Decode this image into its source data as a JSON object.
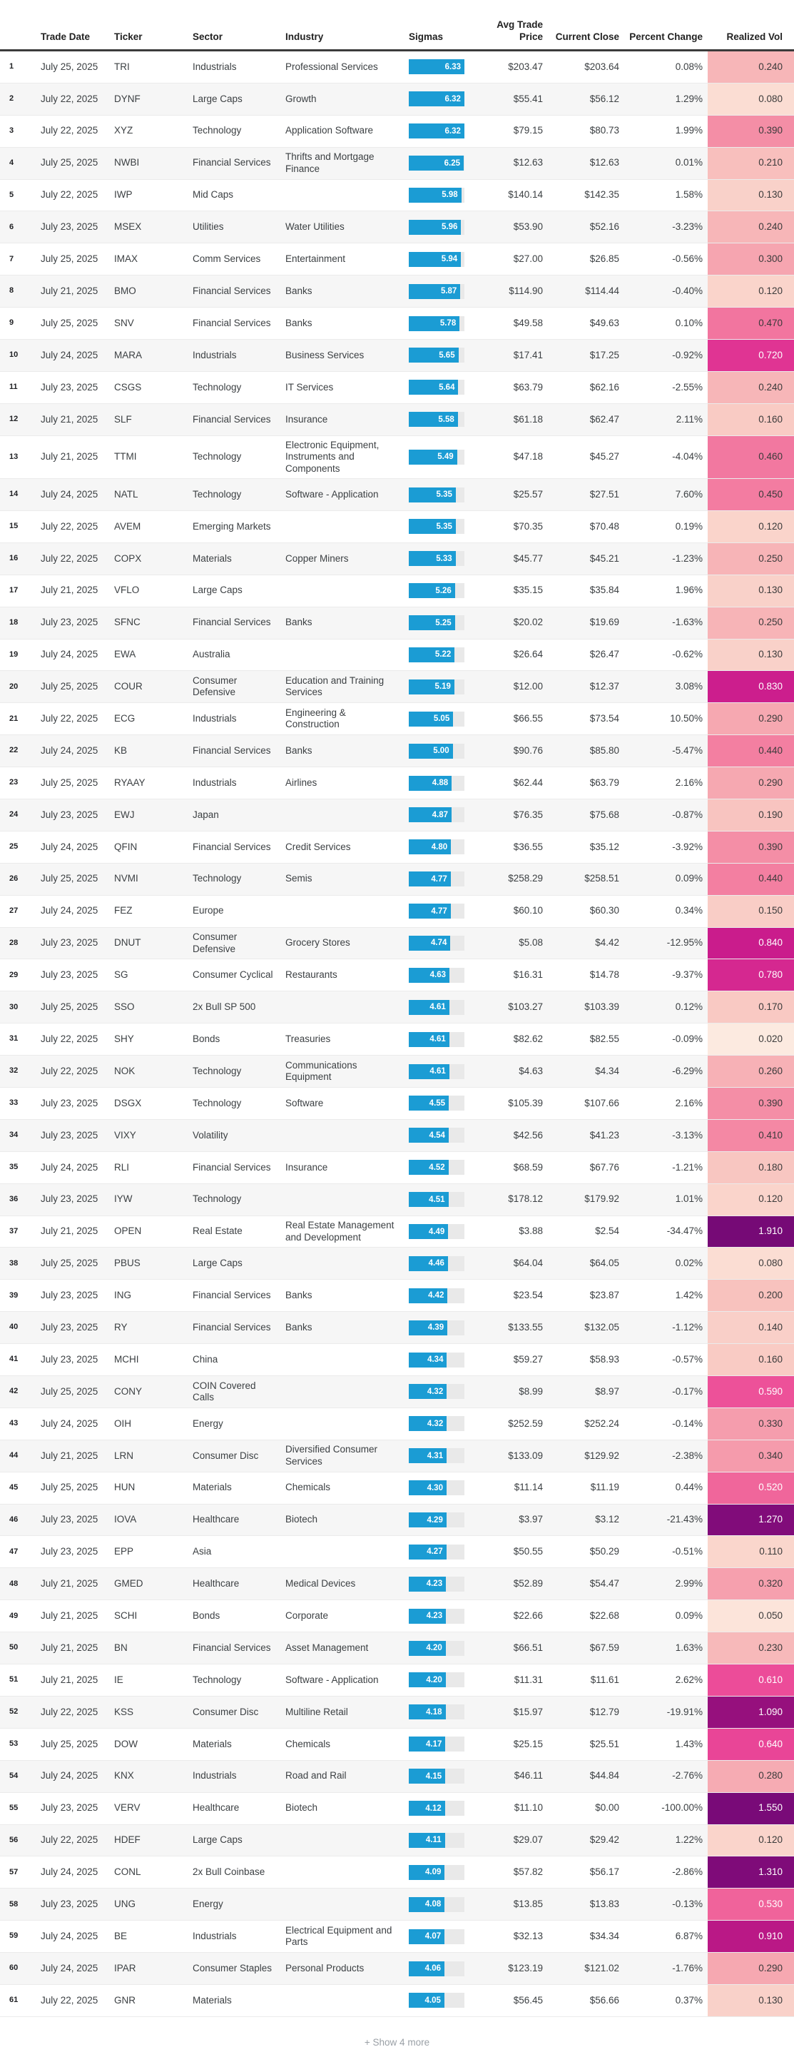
{
  "header": {
    "columns": [
      {
        "label": ""
      },
      {
        "label": "Trade Date"
      },
      {
        "label": "Ticker"
      },
      {
        "label": "Sector"
      },
      {
        "label": "Industry"
      },
      {
        "label": "Sigmas"
      },
      {
        "label": "Avg Trade Price"
      },
      {
        "label": "Current Close"
      },
      {
        "label": "Percent Change"
      },
      {
        "label": "Realized Vol"
      }
    ]
  },
  "sigma_bar": {
    "max": 6.33,
    "fill_color": "#1b9cd4",
    "track_color": "#e9e9e9"
  },
  "vol_colormap": {
    "white_text_min": 0.5,
    "stops": [
      [
        0.0,
        "#FDEFE5"
      ],
      [
        0.1,
        "#FAD8CE"
      ],
      [
        0.2,
        "#F8C2BE"
      ],
      [
        0.3,
        "#F6A5B0"
      ],
      [
        0.4,
        "#F48BA5"
      ],
      [
        0.5,
        "#F16C9C"
      ],
      [
        0.6,
        "#ED4E99"
      ],
      [
        0.72,
        "#E03493"
      ],
      [
        0.84,
        "#CA1C8C"
      ],
      [
        1.0,
        "#A5127F"
      ],
      [
        1.2,
        "#840D7B"
      ],
      [
        1.4,
        "#7A0A78"
      ],
      [
        2.0,
        "#750A76"
      ]
    ]
  },
  "footer": {
    "show_more_label": "+ Show 4 more"
  },
  "rows": [
    {
      "n": "1",
      "date": "July 25, 2025",
      "ticker": "TRI",
      "sector": "Industrials",
      "industry": "Professional Services",
      "sigma": "6.33",
      "avg": "$203.47",
      "close": "$203.64",
      "pct": "0.08%",
      "vol": "0.240"
    },
    {
      "n": "2",
      "date": "July 22, 2025",
      "ticker": "DYNF",
      "sector": "Large Caps",
      "industry": "Growth",
      "sigma": "6.32",
      "avg": "$55.41",
      "close": "$56.12",
      "pct": "1.29%",
      "vol": "0.080"
    },
    {
      "n": "3",
      "date": "July 22, 2025",
      "ticker": "XYZ",
      "sector": "Technology",
      "industry": "Application Software",
      "sigma": "6.32",
      "avg": "$79.15",
      "close": "$80.73",
      "pct": "1.99%",
      "vol": "0.390"
    },
    {
      "n": "4",
      "date": "July 25, 2025",
      "ticker": "NWBI",
      "sector": "Financial Services",
      "industry": "Thrifts and Mortgage Finance",
      "sigma": "6.25",
      "avg": "$12.63",
      "close": "$12.63",
      "pct": "0.01%",
      "vol": "0.210"
    },
    {
      "n": "5",
      "date": "July 22, 2025",
      "ticker": "IWP",
      "sector": "Mid Caps",
      "industry": "",
      "sigma": "5.98",
      "avg": "$140.14",
      "close": "$142.35",
      "pct": "1.58%",
      "vol": "0.130"
    },
    {
      "n": "6",
      "date": "July 23, 2025",
      "ticker": "MSEX",
      "sector": "Utilities",
      "industry": "Water Utilities",
      "sigma": "5.96",
      "avg": "$53.90",
      "close": "$52.16",
      "pct": "-3.23%",
      "vol": "0.240"
    },
    {
      "n": "7",
      "date": "July 25, 2025",
      "ticker": "IMAX",
      "sector": "Comm Services",
      "industry": "Entertainment",
      "sigma": "5.94",
      "avg": "$27.00",
      "close": "$26.85",
      "pct": "-0.56%",
      "vol": "0.300"
    },
    {
      "n": "8",
      "date": "July 21, 2025",
      "ticker": "BMO",
      "sector": "Financial Services",
      "industry": "Banks",
      "sigma": "5.87",
      "avg": "$114.90",
      "close": "$114.44",
      "pct": "-0.40%",
      "vol": "0.120"
    },
    {
      "n": "9",
      "date": "July 25, 2025",
      "ticker": "SNV",
      "sector": "Financial Services",
      "industry": "Banks",
      "sigma": "5.78",
      "avg": "$49.58",
      "close": "$49.63",
      "pct": "0.10%",
      "vol": "0.470"
    },
    {
      "n": "10",
      "date": "July 24, 2025",
      "ticker": "MARA",
      "sector": "Industrials",
      "industry": "Business Services",
      "sigma": "5.65",
      "avg": "$17.41",
      "close": "$17.25",
      "pct": "-0.92%",
      "vol": "0.720"
    },
    {
      "n": "11",
      "date": "July 23, 2025",
      "ticker": "CSGS",
      "sector": "Technology",
      "industry": "IT Services",
      "sigma": "5.64",
      "avg": "$63.79",
      "close": "$62.16",
      "pct": "-2.55%",
      "vol": "0.240"
    },
    {
      "n": "12",
      "date": "July 21, 2025",
      "ticker": "SLF",
      "sector": "Financial Services",
      "industry": "Insurance",
      "sigma": "5.58",
      "avg": "$61.18",
      "close": "$62.47",
      "pct": "2.11%",
      "vol": "0.160"
    },
    {
      "n": "13",
      "date": "July 21, 2025",
      "ticker": "TTMI",
      "sector": "Technology",
      "industry": "Electronic Equipment, Instruments and Components",
      "sigma": "5.49",
      "avg": "$47.18",
      "close": "$45.27",
      "pct": "-4.04%",
      "vol": "0.460"
    },
    {
      "n": "14",
      "date": "July 24, 2025",
      "ticker": "NATL",
      "sector": "Technology",
      "industry": "Software - Application",
      "sigma": "5.35",
      "avg": "$25.57",
      "close": "$27.51",
      "pct": "7.60%",
      "vol": "0.450"
    },
    {
      "n": "15",
      "date": "July 22, 2025",
      "ticker": "AVEM",
      "sector": "Emerging Markets",
      "industry": "",
      "sigma": "5.35",
      "avg": "$70.35",
      "close": "$70.48",
      "pct": "0.19%",
      "vol": "0.120"
    },
    {
      "n": "16",
      "date": "July 22, 2025",
      "ticker": "COPX",
      "sector": "Materials",
      "industry": "Copper Miners",
      "sigma": "5.33",
      "avg": "$45.77",
      "close": "$45.21",
      "pct": "-1.23%",
      "vol": "0.250"
    },
    {
      "n": "17",
      "date": "July 21, 2025",
      "ticker": "VFLO",
      "sector": "Large Caps",
      "industry": "",
      "sigma": "5.26",
      "avg": "$35.15",
      "close": "$35.84",
      "pct": "1.96%",
      "vol": "0.130"
    },
    {
      "n": "18",
      "date": "July 23, 2025",
      "ticker": "SFNC",
      "sector": "Financial Services",
      "industry": "Banks",
      "sigma": "5.25",
      "avg": "$20.02",
      "close": "$19.69",
      "pct": "-1.63%",
      "vol": "0.250"
    },
    {
      "n": "19",
      "date": "July 24, 2025",
      "ticker": "EWA",
      "sector": "Australia",
      "industry": "",
      "sigma": "5.22",
      "avg": "$26.64",
      "close": "$26.47",
      "pct": "-0.62%",
      "vol": "0.130"
    },
    {
      "n": "20",
      "date": "July 25, 2025",
      "ticker": "COUR",
      "sector": "Consumer Defensive",
      "industry": "Education and Training Services",
      "sigma": "5.19",
      "avg": "$12.00",
      "close": "$12.37",
      "pct": "3.08%",
      "vol": "0.830"
    },
    {
      "n": "21",
      "date": "July 22, 2025",
      "ticker": "ECG",
      "sector": "Industrials",
      "industry": "Engineering & Construction",
      "sigma": "5.05",
      "avg": "$66.55",
      "close": "$73.54",
      "pct": "10.50%",
      "vol": "0.290"
    },
    {
      "n": "22",
      "date": "July 24, 2025",
      "ticker": "KB",
      "sector": "Financial Services",
      "industry": "Banks",
      "sigma": "5.00",
      "avg": "$90.76",
      "close": "$85.80",
      "pct": "-5.47%",
      "vol": "0.440"
    },
    {
      "n": "23",
      "date": "July 25, 2025",
      "ticker": "RYAAY",
      "sector": "Industrials",
      "industry": "Airlines",
      "sigma": "4.88",
      "avg": "$62.44",
      "close": "$63.79",
      "pct": "2.16%",
      "vol": "0.290"
    },
    {
      "n": "24",
      "date": "July 23, 2025",
      "ticker": "EWJ",
      "sector": "Japan",
      "industry": "",
      "sigma": "4.87",
      "avg": "$76.35",
      "close": "$75.68",
      "pct": "-0.87%",
      "vol": "0.190"
    },
    {
      "n": "25",
      "date": "July 24, 2025",
      "ticker": "QFIN",
      "sector": "Financial Services",
      "industry": "Credit Services",
      "sigma": "4.80",
      "avg": "$36.55",
      "close": "$35.12",
      "pct": "-3.92%",
      "vol": "0.390"
    },
    {
      "n": "26",
      "date": "July 25, 2025",
      "ticker": "NVMI",
      "sector": "Technology",
      "industry": "Semis",
      "sigma": "4.77",
      "avg": "$258.29",
      "close": "$258.51",
      "pct": "0.09%",
      "vol": "0.440"
    },
    {
      "n": "27",
      "date": "July 24, 2025",
      "ticker": "FEZ",
      "sector": "Europe",
      "industry": "",
      "sigma": "4.77",
      "avg": "$60.10",
      "close": "$60.30",
      "pct": "0.34%",
      "vol": "0.150"
    },
    {
      "n": "28",
      "date": "July 23, 2025",
      "ticker": "DNUT",
      "sector": "Consumer Defensive",
      "industry": "Grocery Stores",
      "sigma": "4.74",
      "avg": "$5.08",
      "close": "$4.42",
      "pct": "-12.95%",
      "vol": "0.840"
    },
    {
      "n": "29",
      "date": "July 23, 2025",
      "ticker": "SG",
      "sector": "Consumer Cyclical",
      "industry": "Restaurants",
      "sigma": "4.63",
      "avg": "$16.31",
      "close": "$14.78",
      "pct": "-9.37%",
      "vol": "0.780"
    },
    {
      "n": "30",
      "date": "July 25, 2025",
      "ticker": "SSO",
      "sector": "2x Bull SP 500",
      "industry": "",
      "sigma": "4.61",
      "avg": "$103.27",
      "close": "$103.39",
      "pct": "0.12%",
      "vol": "0.170"
    },
    {
      "n": "31",
      "date": "July 22, 2025",
      "ticker": "SHY",
      "sector": "Bonds",
      "industry": "Treasuries",
      "sigma": "4.61",
      "avg": "$82.62",
      "close": "$82.55",
      "pct": "-0.09%",
      "vol": "0.020"
    },
    {
      "n": "32",
      "date": "July 22, 2025",
      "ticker": "NOK",
      "sector": "Technology",
      "industry": "Communications Equipment",
      "sigma": "4.61",
      "avg": "$4.63",
      "close": "$4.34",
      "pct": "-6.29%",
      "vol": "0.260"
    },
    {
      "n": "33",
      "date": "July 23, 2025",
      "ticker": "DSGX",
      "sector": "Technology",
      "industry": "Software",
      "sigma": "4.55",
      "avg": "$105.39",
      "close": "$107.66",
      "pct": "2.16%",
      "vol": "0.390"
    },
    {
      "n": "34",
      "date": "July 23, 2025",
      "ticker": "VIXY",
      "sector": "Volatility",
      "industry": "",
      "sigma": "4.54",
      "avg": "$42.56",
      "close": "$41.23",
      "pct": "-3.13%",
      "vol": "0.410"
    },
    {
      "n": "35",
      "date": "July 24, 2025",
      "ticker": "RLI",
      "sector": "Financial Services",
      "industry": "Insurance",
      "sigma": "4.52",
      "avg": "$68.59",
      "close": "$67.76",
      "pct": "-1.21%",
      "vol": "0.180"
    },
    {
      "n": "36",
      "date": "July 23, 2025",
      "ticker": "IYW",
      "sector": "Technology",
      "industry": "",
      "sigma": "4.51",
      "avg": "$178.12",
      "close": "$179.92",
      "pct": "1.01%",
      "vol": "0.120"
    },
    {
      "n": "37",
      "date": "July 21, 2025",
      "ticker": "OPEN",
      "sector": "Real Estate",
      "industry": "Real Estate Management and Development",
      "sigma": "4.49",
      "avg": "$3.88",
      "close": "$2.54",
      "pct": "-34.47%",
      "vol": "1.910"
    },
    {
      "n": "38",
      "date": "July 25, 2025",
      "ticker": "PBUS",
      "sector": "Large Caps",
      "industry": "",
      "sigma": "4.46",
      "avg": "$64.04",
      "close": "$64.05",
      "pct": "0.02%",
      "vol": "0.080"
    },
    {
      "n": "39",
      "date": "July 23, 2025",
      "ticker": "ING",
      "sector": "Financial Services",
      "industry": "Banks",
      "sigma": "4.42",
      "avg": "$23.54",
      "close": "$23.87",
      "pct": "1.42%",
      "vol": "0.200"
    },
    {
      "n": "40",
      "date": "July 23, 2025",
      "ticker": "RY",
      "sector": "Financial Services",
      "industry": "Banks",
      "sigma": "4.39",
      "avg": "$133.55",
      "close": "$132.05",
      "pct": "-1.12%",
      "vol": "0.140"
    },
    {
      "n": "41",
      "date": "July 23, 2025",
      "ticker": "MCHI",
      "sector": "China",
      "industry": "",
      "sigma": "4.34",
      "avg": "$59.27",
      "close": "$58.93",
      "pct": "-0.57%",
      "vol": "0.160"
    },
    {
      "n": "42",
      "date": "July 25, 2025",
      "ticker": "CONY",
      "sector": "COIN Covered Calls",
      "industry": "",
      "sigma": "4.32",
      "avg": "$8.99",
      "close": "$8.97",
      "pct": "-0.17%",
      "vol": "0.590"
    },
    {
      "n": "43",
      "date": "July 24, 2025",
      "ticker": "OIH",
      "sector": "Energy",
      "industry": "",
      "sigma": "4.32",
      "avg": "$252.59",
      "close": "$252.24",
      "pct": "-0.14%",
      "vol": "0.330"
    },
    {
      "n": "44",
      "date": "July 21, 2025",
      "ticker": "LRN",
      "sector": "Consumer Disc",
      "industry": "Diversified Consumer Services",
      "sigma": "4.31",
      "avg": "$133.09",
      "close": "$129.92",
      "pct": "-2.38%",
      "vol": "0.340"
    },
    {
      "n": "45",
      "date": "July 25, 2025",
      "ticker": "HUN",
      "sector": "Materials",
      "industry": "Chemicals",
      "sigma": "4.30",
      "avg": "$11.14",
      "close": "$11.19",
      "pct": "0.44%",
      "vol": "0.520"
    },
    {
      "n": "46",
      "date": "July 23, 2025",
      "ticker": "IOVA",
      "sector": "Healthcare",
      "industry": "Biotech",
      "sigma": "4.29",
      "avg": "$3.97",
      "close": "$3.12",
      "pct": "-21.43%",
      "vol": "1.270"
    },
    {
      "n": "47",
      "date": "July 23, 2025",
      "ticker": "EPP",
      "sector": "Asia",
      "industry": "",
      "sigma": "4.27",
      "avg": "$50.55",
      "close": "$50.29",
      "pct": "-0.51%",
      "vol": "0.110"
    },
    {
      "n": "48",
      "date": "July 21, 2025",
      "ticker": "GMED",
      "sector": "Healthcare",
      "industry": "Medical Devices",
      "sigma": "4.23",
      "avg": "$52.89",
      "close": "$54.47",
      "pct": "2.99%",
      "vol": "0.320"
    },
    {
      "n": "49",
      "date": "July 21, 2025",
      "ticker": "SCHI",
      "sector": "Bonds",
      "industry": "Corporate",
      "sigma": "4.23",
      "avg": "$22.66",
      "close": "$22.68",
      "pct": "0.09%",
      "vol": "0.050"
    },
    {
      "n": "50",
      "date": "July 21, 2025",
      "ticker": "BN",
      "sector": "Financial Services",
      "industry": "Asset Management",
      "sigma": "4.20",
      "avg": "$66.51",
      "close": "$67.59",
      "pct": "1.63%",
      "vol": "0.230"
    },
    {
      "n": "51",
      "date": "July 21, 2025",
      "ticker": "IE",
      "sector": "Technology",
      "industry": "Software - Application",
      "sigma": "4.20",
      "avg": "$11.31",
      "close": "$11.61",
      "pct": "2.62%",
      "vol": "0.610"
    },
    {
      "n": "52",
      "date": "July 22, 2025",
      "ticker": "KSS",
      "sector": "Consumer Disc",
      "industry": "Multiline Retail",
      "sigma": "4.18",
      "avg": "$15.97",
      "close": "$12.79",
      "pct": "-19.91%",
      "vol": "1.090"
    },
    {
      "n": "53",
      "date": "July 25, 2025",
      "ticker": "DOW",
      "sector": "Materials",
      "industry": "Chemicals",
      "sigma": "4.17",
      "avg": "$25.15",
      "close": "$25.51",
      "pct": "1.43%",
      "vol": "0.640"
    },
    {
      "n": "54",
      "date": "July 24, 2025",
      "ticker": "KNX",
      "sector": "Industrials",
      "industry": "Road and Rail",
      "sigma": "4.15",
      "avg": "$46.11",
      "close": "$44.84",
      "pct": "-2.76%",
      "vol": "0.280"
    },
    {
      "n": "55",
      "date": "July 23, 2025",
      "ticker": "VERV",
      "sector": "Healthcare",
      "industry": "Biotech",
      "sigma": "4.12",
      "avg": "$11.10",
      "close": "$0.00",
      "pct": "-100.00%",
      "vol": "1.550"
    },
    {
      "n": "56",
      "date": "July 22, 2025",
      "ticker": "HDEF",
      "sector": "Large Caps",
      "industry": "",
      "sigma": "4.11",
      "avg": "$29.07",
      "close": "$29.42",
      "pct": "1.22%",
      "vol": "0.120"
    },
    {
      "n": "57",
      "date": "July 24, 2025",
      "ticker": "CONL",
      "sector": "2x Bull Coinbase",
      "industry": "",
      "sigma": "4.09",
      "avg": "$57.82",
      "close": "$56.17",
      "pct": "-2.86%",
      "vol": "1.310"
    },
    {
      "n": "58",
      "date": "July 23, 2025",
      "ticker": "UNG",
      "sector": "Energy",
      "industry": "",
      "sigma": "4.08",
      "avg": "$13.85",
      "close": "$13.83",
      "pct": "-0.13%",
      "vol": "0.530"
    },
    {
      "n": "59",
      "date": "July 24, 2025",
      "ticker": "BE",
      "sector": "Industrials",
      "industry": "Electrical Equipment and Parts",
      "sigma": "4.07",
      "avg": "$32.13",
      "close": "$34.34",
      "pct": "6.87%",
      "vol": "0.910"
    },
    {
      "n": "60",
      "date": "July 24, 2025",
      "ticker": "IPAR",
      "sector": "Consumer Staples",
      "industry": "Personal Products",
      "sigma": "4.06",
      "avg": "$123.19",
      "close": "$121.02",
      "pct": "-1.76%",
      "vol": "0.290"
    },
    {
      "n": "61",
      "date": "July 22, 2025",
      "ticker": "GNR",
      "sector": "Materials",
      "industry": "",
      "sigma": "4.05",
      "avg": "$56.45",
      "close": "$56.66",
      "pct": "0.37%",
      "vol": "0.130"
    }
  ]
}
